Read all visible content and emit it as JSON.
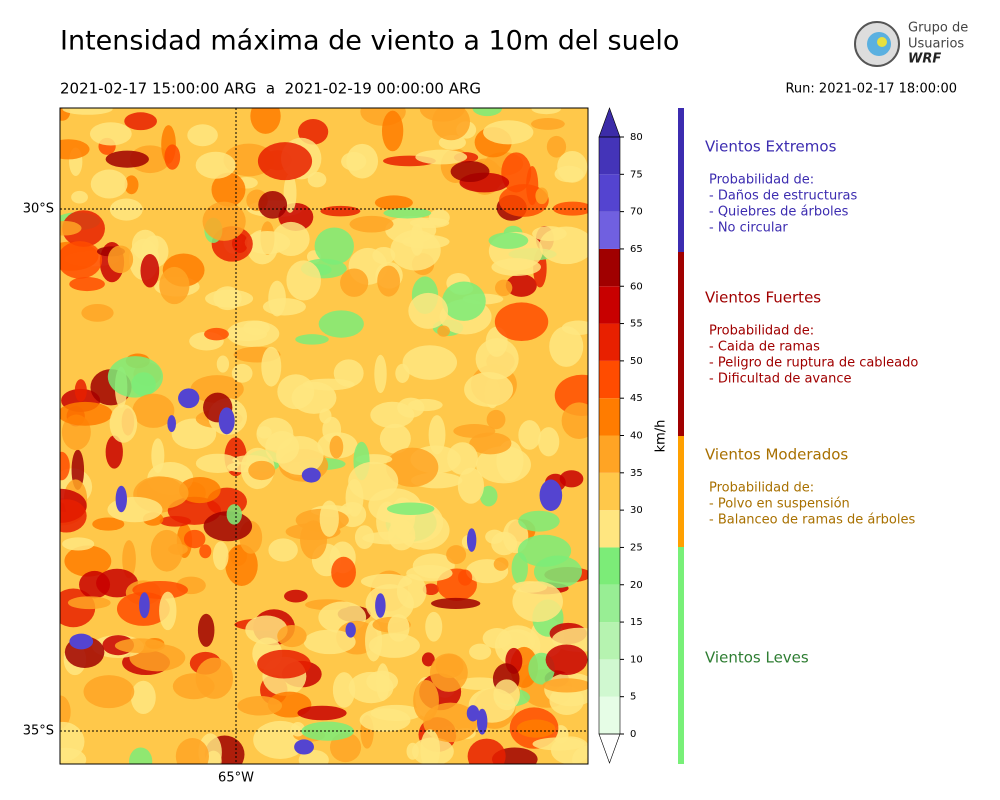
{
  "header": {
    "title": "Intensidad máxima de viento a 10m del suelo",
    "period": "2021-02-17 15:00:00 ARG  a  2021-02-19 00:00:00 ARG",
    "run": "Run: 2021-02-17 18:00:00"
  },
  "logo": {
    "lines": [
      "Grupo de",
      "Usuarios",
      "WRF"
    ]
  },
  "map": {
    "lat_labels": [
      "30°S",
      "35°S"
    ],
    "lon_labels": [
      "65°W"
    ]
  },
  "colorbar": {
    "label": "km/h",
    "ticks": [
      0,
      5,
      10,
      15,
      20,
      25,
      30,
      35,
      40,
      45,
      50,
      55,
      60,
      65,
      70,
      75,
      80
    ],
    "colors": [
      "#e6fde6",
      "#d0f8d0",
      "#b6f3b0",
      "#98ee94",
      "#7cec78",
      "#ffe680",
      "#ffc84a",
      "#ffa424",
      "#ff7c00",
      "#ff4c00",
      "#e82000",
      "#c80000",
      "#a00000",
      "#7060e0",
      "#5444d0",
      "#4434b8"
    ],
    "under_color": "#ffffff",
    "over_color": "#3c2ca8"
  },
  "legend": [
    {
      "name": "Vientos Extremos",
      "color": "#3c2cb0",
      "text_color": "#3c2cb0",
      "lines": [
        "Probabilidad de:",
        "- Daños de estructuras",
        "- Quiebres de árboles",
        "- No circular"
      ]
    },
    {
      "name": "Vientos Fuertes",
      "color": "#a00000",
      "text_color": "#a00000",
      "lines": [
        "Probabilidad de:",
        "- Caida de ramas",
        "- Peligro de ruptura de cableado",
        "- Dificultad de avance"
      ]
    },
    {
      "name": "Vientos Moderados",
      "color": "#ffa000",
      "text_color": "#a87000",
      "lines": [
        "Probabilidad de:",
        "- Polvo en suspensión",
        "- Balanceo de ramas de árboles"
      ]
    },
    {
      "name": "Vientos Leves",
      "color": "#78f078",
      "text_color": "#2e7d32",
      "lines": []
    }
  ]
}
